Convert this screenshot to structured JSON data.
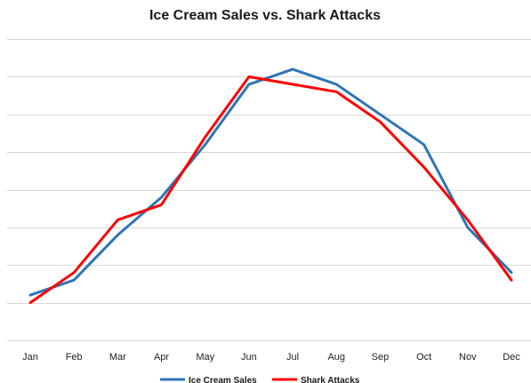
{
  "chart_data": {
    "type": "line",
    "title": "Ice Cream Sales vs. Shark Attacks",
    "categories": [
      "Jan",
      "Feb",
      "Mar",
      "Apr",
      "May",
      "Jun",
      "Jul",
      "Aug",
      "Sep",
      "Oct",
      "Nov",
      "Dec"
    ],
    "series": [
      {
        "name": "Ice Cream Sales",
        "color": "#2e75b6",
        "values": [
          1.2,
          1.6,
          2.8,
          3.8,
          5.2,
          6.8,
          7.2,
          6.8,
          6.0,
          5.2,
          3.0,
          1.8
        ]
      },
      {
        "name": "Shark Attacks",
        "color": "#ff0000",
        "values": [
          1.0,
          1.8,
          3.2,
          3.6,
          5.4,
          7.0,
          6.8,
          6.6,
          5.8,
          4.6,
          3.2,
          1.6
        ]
      }
    ],
    "ylim": [
      0,
      8
    ],
    "yticks": [
      0,
      1,
      2,
      3,
      4,
      5,
      6,
      7,
      8
    ],
    "y_tick_labels_shown": false,
    "grid": true,
    "legend_position": "bottom",
    "xlabel": "",
    "ylabel": ""
  }
}
